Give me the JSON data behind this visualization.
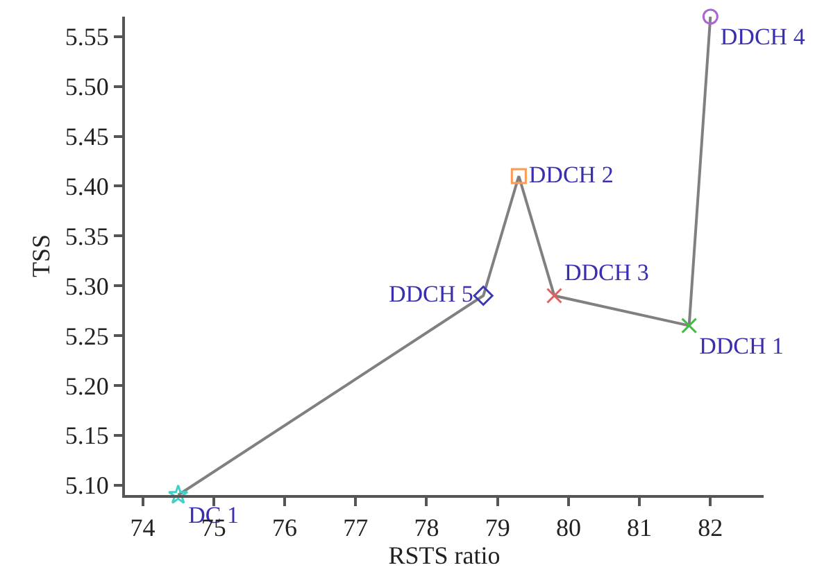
{
  "chart_data": {
    "type": "line",
    "xlabel": "RSTS ratio",
    "ylabel": "TSS",
    "xlim": [
      73.75,
      82.75
    ],
    "xticks": [
      74,
      75,
      76,
      77,
      78,
      79,
      80,
      81,
      82
    ],
    "ylim": [
      5.09,
      5.57
    ],
    "yticks": [
      {
        "value": 5.1,
        "label": "5.10"
      },
      {
        "value": 5.15,
        "label": "5.15"
      },
      {
        "value": 5.2,
        "label": "5.20"
      },
      {
        "value": 5.25,
        "label": "5.25"
      },
      {
        "value": 5.3,
        "label": "5.30"
      },
      {
        "value": 5.35,
        "label": "5.35"
      },
      {
        "value": 5.4,
        "label": "5.40"
      },
      {
        "value": 5.45,
        "label": "5.45"
      },
      {
        "value": 5.5,
        "label": "5.50"
      },
      {
        "value": 5.55,
        "label": "5.55"
      }
    ],
    "series": [
      {
        "color": "#808080",
        "marker": "none",
        "line_style": "solid",
        "x": [
          74.5,
          78.8,
          79.3,
          79.8,
          81.7,
          82.0
        ],
        "values": [
          5.09,
          5.29,
          5.41,
          5.29,
          5.26,
          5.57
        ]
      },
      {
        "type": "scatter",
        "name": "DC 1",
        "color": "#40d0c8",
        "marker": "star",
        "x": [
          74.5
        ],
        "values": [
          5.09
        ]
      },
      {
        "type": "scatter",
        "name": "DDCH 5",
        "color": "#3a3ab0",
        "marker": "diamond",
        "x": [
          78.8
        ],
        "values": [
          5.29
        ]
      },
      {
        "type": "scatter",
        "name": "DDCH 2",
        "color": "#ff9955",
        "marker": "square",
        "x": [
          79.3
        ],
        "values": [
          5.41
        ]
      },
      {
        "type": "scatter",
        "name": "DDCH 3",
        "color": "#e06060",
        "marker": "cross",
        "x": [
          79.8
        ],
        "values": [
          5.29
        ]
      },
      {
        "type": "scatter",
        "name": "DDCH 1",
        "color": "#44bb44",
        "marker": "cross",
        "x": [
          81.7
        ],
        "values": [
          5.26
        ]
      },
      {
        "type": "scatter",
        "name": "DDCH 4",
        "color": "#aa66cc",
        "marker": "circle",
        "x": [
          82.0
        ],
        "values": [
          5.57
        ]
      }
    ]
  }
}
